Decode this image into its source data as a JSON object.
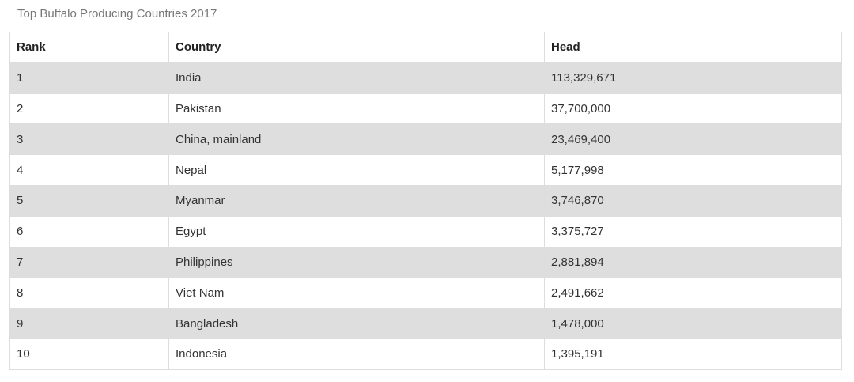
{
  "caption": "Top Buffalo Producing Countries 2017",
  "headers": {
    "rank": "Rank",
    "country": "Country",
    "head": "Head"
  },
  "rows": [
    {
      "rank": "1",
      "country": "India",
      "head": "113,329,671"
    },
    {
      "rank": "2",
      "country": "Pakistan",
      "head": "37,700,000"
    },
    {
      "rank": "3",
      "country": "China, mainland",
      "head": "23,469,400"
    },
    {
      "rank": "4",
      "country": "Nepal",
      "head": "5,177,998"
    },
    {
      "rank": "5",
      "country": "Myanmar",
      "head": "3,746,870"
    },
    {
      "rank": "6",
      "country": "Egypt",
      "head": "3,375,727"
    },
    {
      "rank": "7",
      "country": "Philippines",
      "head": "2,881,894"
    },
    {
      "rank": "8",
      "country": "Viet Nam",
      "head": "2,491,662"
    },
    {
      "rank": "9",
      "country": "Bangladesh",
      "head": "1,478,000"
    },
    {
      "rank": "10",
      "country": "Indonesia",
      "head": "1,395,191"
    }
  ]
}
